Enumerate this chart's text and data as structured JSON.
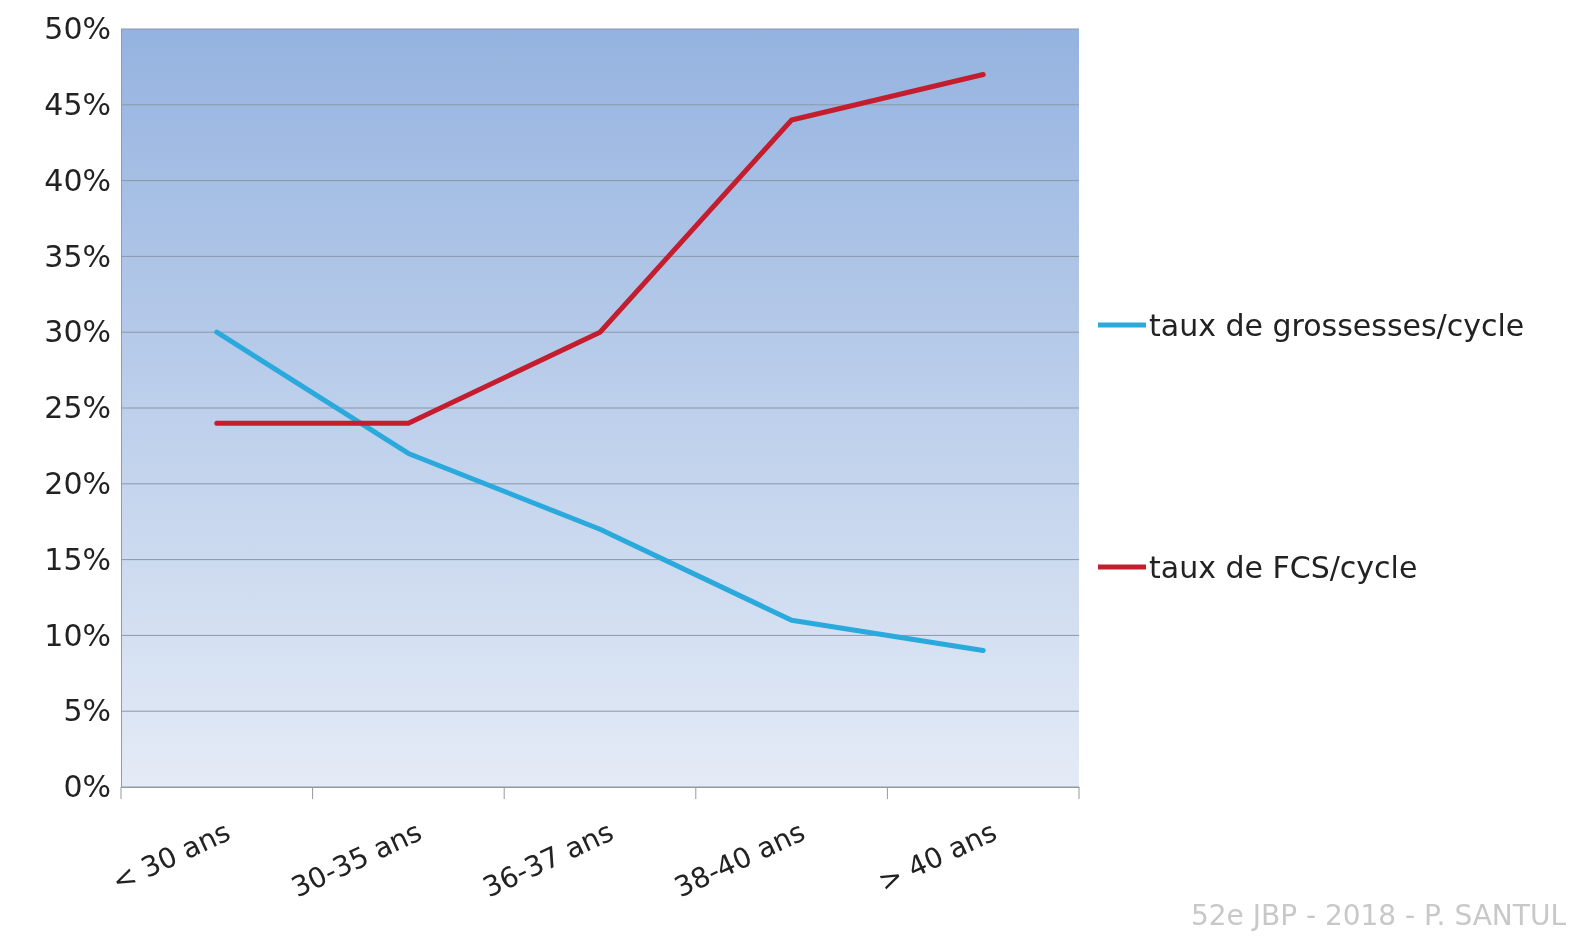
{
  "chart_data": {
    "type": "line",
    "categories": [
      "< 30 ans",
      "30-35 ans",
      "36-37 ans",
      "38-40 ans",
      "> 40 ans"
    ],
    "series": [
      {
        "name": "taux de grossesses/cycle",
        "color": "#2aa9dc",
        "values": [
          30,
          22,
          17,
          11,
          9
        ]
      },
      {
        "name": "taux de FCS/cycle",
        "color": "#c41e2e",
        "values": [
          24,
          24,
          30,
          44,
          47
        ]
      }
    ],
    "ylim": [
      0,
      50
    ],
    "yticks": [
      {
        "value": 0,
        "label": "0%"
      },
      {
        "value": 5,
        "label": "5%"
      },
      {
        "value": 10,
        "label": "10%"
      },
      {
        "value": 15,
        "label": "15%"
      },
      {
        "value": 20,
        "label": "20%"
      },
      {
        "value": 25,
        "label": "25%"
      },
      {
        "value": 30,
        "label": "30%"
      },
      {
        "value": 35,
        "label": "35%"
      },
      {
        "value": 40,
        "label": "40%"
      },
      {
        "value": 45,
        "label": "45%"
      },
      {
        "value": 50,
        "label": "50%"
      }
    ],
    "grid": "y",
    "legend": "right",
    "marker": "none",
    "line_style": "solid",
    "annotations": [
      "52e JBP - 2018 - P. SANTUL"
    ]
  }
}
